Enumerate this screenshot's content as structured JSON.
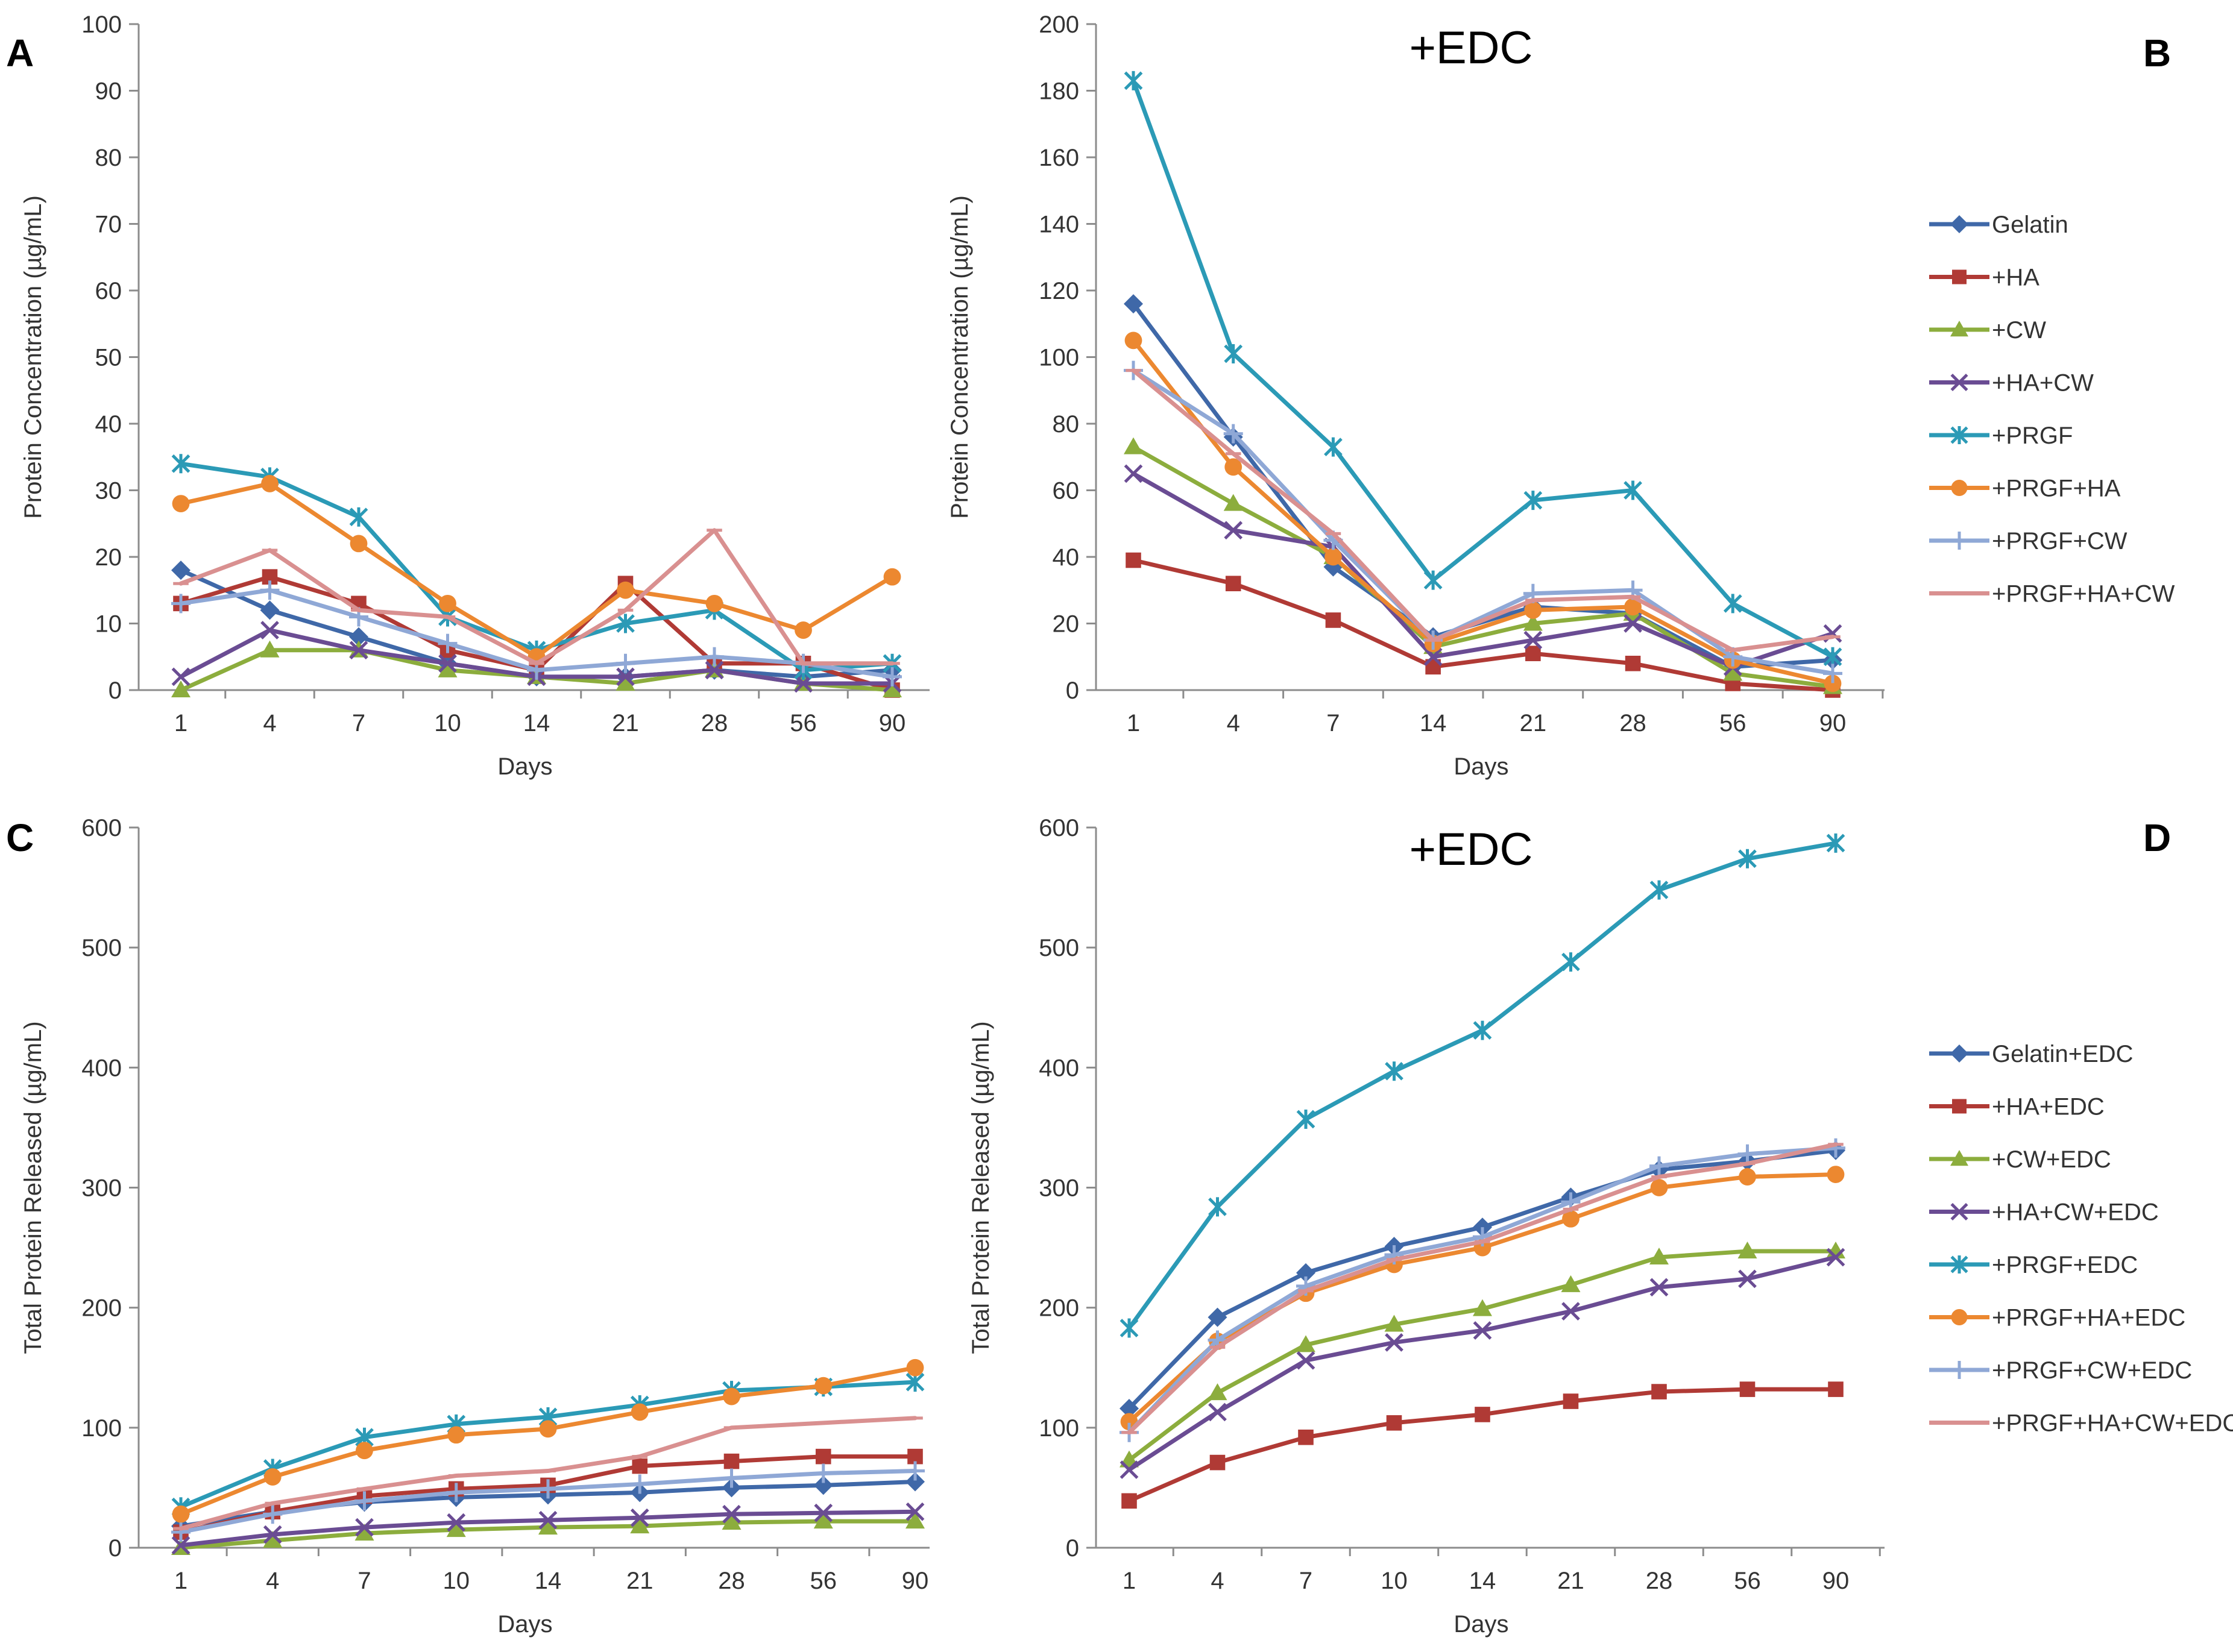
{
  "colors": {
    "blue": "#3f68a8",
    "red": "#b03a35",
    "green": "#8cad3d",
    "purple": "#6a4c93",
    "teal": "#2b9ab6",
    "orange": "#ec8830",
    "lightblue": "#8fa8d6",
    "pink": "#d99090"
  },
  "chart_data": [
    {
      "panel": "A",
      "type": "line",
      "title": "",
      "xlabel": "Days",
      "ylabel": "Protein Concentration (µg/mL)",
      "categories": [
        "1",
        "4",
        "7",
        "10",
        "14",
        "21",
        "28",
        "56",
        "90"
      ],
      "ylim": [
        0,
        100
      ],
      "yticks": [
        0,
        10,
        20,
        30,
        40,
        50,
        60,
        70,
        80,
        90,
        100
      ],
      "series": [
        {
          "name": "Gelatin",
          "color": "blue",
          "marker": "diamond",
          "values": [
            18,
            12,
            8,
            4,
            2,
            2,
            3,
            2,
            3
          ]
        },
        {
          "name": "+HA",
          "color": "red",
          "marker": "square",
          "values": [
            13,
            17,
            13,
            6,
            3,
            16,
            4,
            4,
            0
          ]
        },
        {
          "name": "+CW",
          "color": "green",
          "marker": "triangle",
          "values": [
            0,
            6,
            6,
            3,
            2,
            1,
            3,
            1,
            0
          ]
        },
        {
          "name": "+HA+CW",
          "color": "purple",
          "marker": "x",
          "values": [
            2,
            9,
            6,
            4,
            2,
            2,
            3,
            1,
            1
          ]
        },
        {
          "name": "+PRGF",
          "color": "teal",
          "marker": "star",
          "values": [
            34,
            32,
            26,
            11,
            6,
            10,
            12,
            3,
            4
          ]
        },
        {
          "name": "+PRGF+HA",
          "color": "orange",
          "marker": "circle",
          "values": [
            28,
            31,
            22,
            13,
            5,
            15,
            13,
            9,
            17
          ]
        },
        {
          "name": "+PRGF+CW",
          "color": "lightblue",
          "marker": "plus",
          "values": [
            13,
            15,
            11,
            7,
            3,
            4,
            5,
            4,
            2
          ]
        },
        {
          "name": "+PRGF+HA+CW",
          "color": "pink",
          "marker": "dash",
          "values": [
            16,
            21,
            12,
            11,
            4,
            12,
            24,
            4,
            4
          ]
        }
      ]
    },
    {
      "panel": "B",
      "type": "line",
      "title": "+EDC",
      "xlabel": "Days",
      "ylabel": "Protein Concentration (µg/mL)",
      "categories": [
        "1",
        "4",
        "7",
        "14",
        "21",
        "28",
        "56",
        "90"
      ],
      "ylim": [
        0,
        200
      ],
      "yticks": [
        0,
        20,
        40,
        60,
        80,
        100,
        120,
        140,
        160,
        180,
        200
      ],
      "legend_position": "right",
      "series": [
        {
          "name": "Gelatin",
          "color": "blue",
          "marker": "diamond",
          "values": [
            116,
            76,
            37,
            16,
            25,
            23,
            7,
            9
          ]
        },
        {
          "name": "+HA",
          "color": "red",
          "marker": "square",
          "values": [
            39,
            32,
            21,
            7,
            11,
            8,
            2,
            0
          ]
        },
        {
          "name": "+CW",
          "color": "green",
          "marker": "triangle",
          "values": [
            73,
            56,
            40,
            13,
            20,
            23,
            5,
            1
          ]
        },
        {
          "name": "+HA+CW",
          "color": "purple",
          "marker": "x",
          "values": [
            65,
            48,
            43,
            10,
            15,
            20,
            7,
            17
          ]
        },
        {
          "name": "+PRGF",
          "color": "teal",
          "marker": "star",
          "values": [
            183,
            101,
            73,
            33,
            57,
            60,
            26,
            10
          ]
        },
        {
          "name": "+PRGF+HA",
          "color": "orange",
          "marker": "circle",
          "values": [
            105,
            67,
            40,
            14,
            24,
            25,
            9,
            2
          ]
        },
        {
          "name": "+PRGF+CW",
          "color": "lightblue",
          "marker": "plus",
          "values": [
            96,
            77,
            45,
            15,
            29,
            30,
            10,
            5
          ]
        },
        {
          "name": "+PRGF+HA+CW",
          "color": "pink",
          "marker": "dash",
          "values": [
            96,
            71,
            47,
            15,
            27,
            28,
            12,
            16
          ]
        }
      ]
    },
    {
      "panel": "C",
      "type": "line",
      "title": "",
      "xlabel": "Days",
      "ylabel": "Total Protein Released (µg/mL)",
      "categories": [
        "1",
        "4",
        "7",
        "10",
        "14",
        "21",
        "28",
        "56",
        "90"
      ],
      "ylim": [
        0,
        600
      ],
      "yticks": [
        0,
        100,
        200,
        300,
        400,
        500,
        600
      ],
      "series": [
        {
          "name": "Gelatin",
          "color": "blue",
          "marker": "diamond",
          "values": [
            18,
            30,
            38,
            42,
            44,
            46,
            50,
            52,
            55
          ]
        },
        {
          "name": "+HA",
          "color": "red",
          "marker": "square",
          "values": [
            13,
            30,
            43,
            49,
            52,
            68,
            72,
            76,
            76
          ]
        },
        {
          "name": "+CW",
          "color": "green",
          "marker": "triangle",
          "values": [
            0,
            6,
            12,
            15,
            17,
            18,
            21,
            22,
            22
          ]
        },
        {
          "name": "+HA+CW",
          "color": "purple",
          "marker": "x",
          "values": [
            2,
            11,
            17,
            21,
            23,
            25,
            28,
            29,
            30
          ]
        },
        {
          "name": "+PRGF",
          "color": "teal",
          "marker": "star",
          "values": [
            34,
            66,
            92,
            103,
            109,
            119,
            131,
            134,
            138
          ]
        },
        {
          "name": "+PRGF+HA",
          "color": "orange",
          "marker": "circle",
          "values": [
            28,
            59,
            81,
            94,
            99,
            113,
            126,
            135,
            150
          ]
        },
        {
          "name": "+PRGF+CW",
          "color": "lightblue",
          "marker": "plus",
          "values": [
            13,
            28,
            39,
            46,
            49,
            53,
            58,
            62,
            64
          ]
        },
        {
          "name": "+PRGF+HA+CW",
          "color": "pink",
          "marker": "dash",
          "values": [
            16,
            37,
            49,
            60,
            64,
            76,
            100,
            104,
            108
          ]
        }
      ]
    },
    {
      "panel": "D",
      "type": "line",
      "title": "+EDC",
      "xlabel": "Days",
      "ylabel": "Total Protein Released (µg/mL)",
      "categories": [
        "1",
        "4",
        "7",
        "10",
        "14",
        "21",
        "28",
        "56",
        "90"
      ],
      "ylim": [
        0,
        600
      ],
      "yticks": [
        0,
        100,
        200,
        300,
        400,
        500,
        600
      ],
      "legend_position": "right",
      "series": [
        {
          "name": "Gelatin+EDC",
          "color": "blue",
          "marker": "diamond",
          "values": [
            116,
            192,
            229,
            251,
            267,
            292,
            315,
            322,
            331
          ]
        },
        {
          "name": "+HA+EDC",
          "color": "red",
          "marker": "square",
          "values": [
            39,
            71,
            92,
            104,
            111,
            122,
            130,
            132,
            132
          ]
        },
        {
          "name": "+CW+EDC",
          "color": "green",
          "marker": "triangle",
          "values": [
            73,
            129,
            169,
            186,
            199,
            219,
            242,
            247,
            247
          ]
        },
        {
          "name": "+HA+CW+EDC",
          "color": "purple",
          "marker": "x",
          "values": [
            65,
            113,
            156,
            171,
            181,
            197,
            217,
            224,
            242
          ]
        },
        {
          "name": "+PRGF+EDC",
          "color": "teal",
          "marker": "star",
          "values": [
            183,
            284,
            357,
            397,
            431,
            488,
            548,
            574,
            587
          ]
        },
        {
          "name": "+PRGF+HA+EDC",
          "color": "orange",
          "marker": "circle",
          "values": [
            105,
            172,
            212,
            236,
            250,
            274,
            300,
            309,
            311
          ]
        },
        {
          "name": "+PRGF+CW+EDC",
          "color": "lightblue",
          "marker": "plus",
          "values": [
            96,
            173,
            218,
            244,
            259,
            288,
            318,
            328,
            333
          ]
        },
        {
          "name": "+PRGF+HA+CW+EDC",
          "color": "pink",
          "marker": "dash",
          "values": [
            96,
            167,
            214,
            240,
            255,
            282,
            309,
            320,
            336
          ]
        }
      ]
    }
  ]
}
